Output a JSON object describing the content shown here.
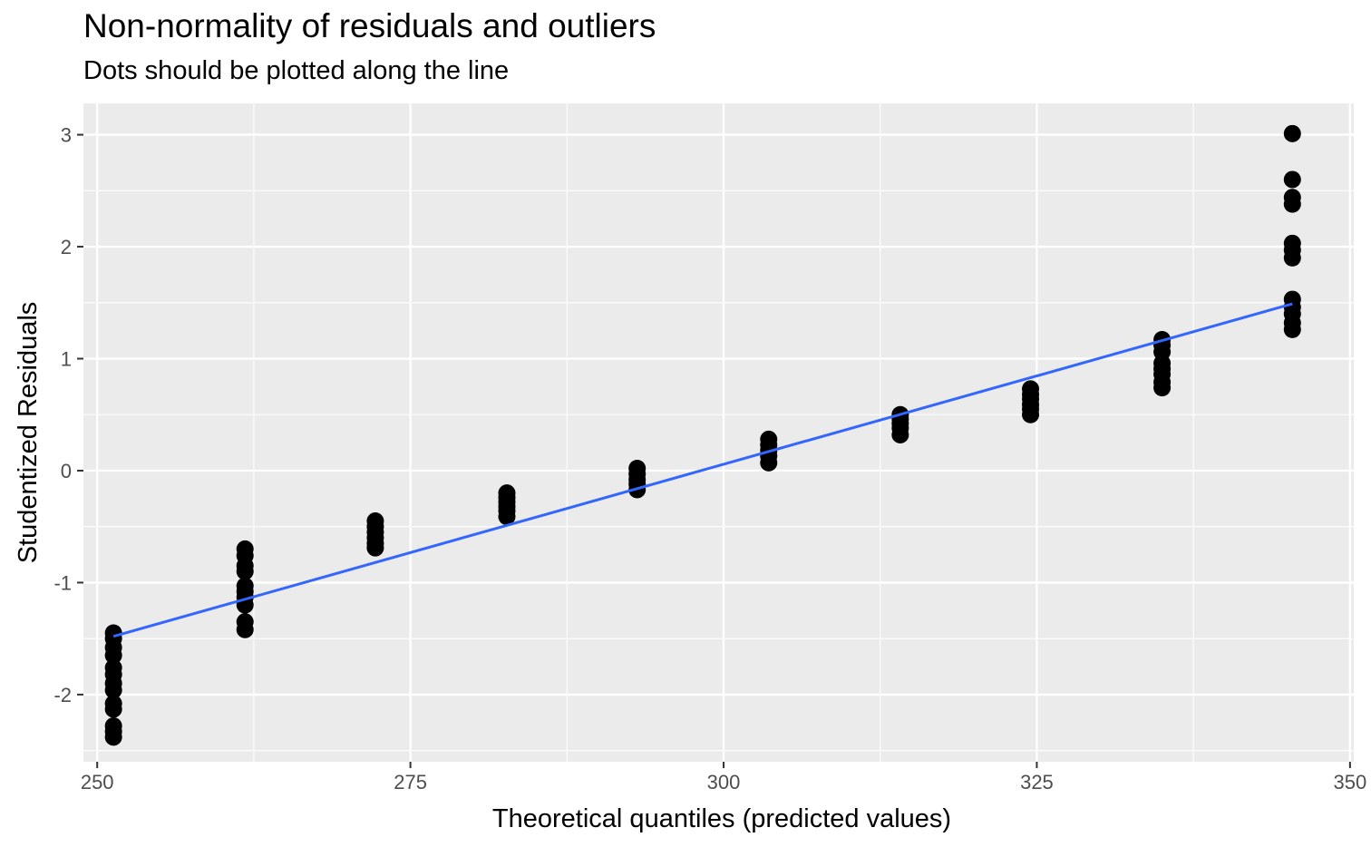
{
  "chart_data": {
    "type": "scatter",
    "title": "Non-normality of residuals and outliers",
    "subtitle": "Dots should be plotted along the line",
    "xlabel": "Theoretical quantiles (predicted values)",
    "ylabel": "Studentized Residuals",
    "xlim": [
      248.9,
      350.3
    ],
    "ylim": [
      -2.6,
      3.28
    ],
    "x_ticks": [
      250,
      275,
      300,
      325,
      350
    ],
    "x_tick_labels": [
      "250",
      "275",
      "300",
      "325",
      "350"
    ],
    "y_ticks": [
      -2,
      -1,
      0,
      1,
      2,
      3
    ],
    "y_tick_labels": [
      "-2",
      "-1",
      "0",
      "1",
      "2",
      "3"
    ],
    "grid": true,
    "colors": {
      "panel": "#ebebeb",
      "grid": "#ffffff",
      "points": "#000000",
      "line": "#3366ff"
    },
    "series": [
      {
        "kind": "points",
        "points": [
          {
            "x": 251.3,
            "y": -1.45
          },
          {
            "x": 251.3,
            "y": -1.5
          },
          {
            "x": 251.3,
            "y": -1.58
          },
          {
            "x": 251.3,
            "y": -1.65
          },
          {
            "x": 251.3,
            "y": -1.76
          },
          {
            "x": 251.3,
            "y": -1.82
          },
          {
            "x": 251.3,
            "y": -1.9
          },
          {
            "x": 251.3,
            "y": -1.96
          },
          {
            "x": 251.3,
            "y": -2.08
          },
          {
            "x": 251.3,
            "y": -2.13
          },
          {
            "x": 251.3,
            "y": -2.28
          },
          {
            "x": 251.3,
            "y": -2.33
          },
          {
            "x": 251.3,
            "y": -2.38
          },
          {
            "x": 261.8,
            "y": -0.7
          },
          {
            "x": 261.8,
            "y": -0.76
          },
          {
            "x": 261.8,
            "y": -0.85
          },
          {
            "x": 261.8,
            "y": -0.9
          },
          {
            "x": 261.8,
            "y": -1.03
          },
          {
            "x": 261.8,
            "y": -1.08
          },
          {
            "x": 261.8,
            "y": -1.13
          },
          {
            "x": 261.8,
            "y": -1.2
          },
          {
            "x": 261.8,
            "y": -1.35
          },
          {
            "x": 261.8,
            "y": -1.42
          },
          {
            "x": 272.2,
            "y": -0.45
          },
          {
            "x": 272.2,
            "y": -0.5
          },
          {
            "x": 272.2,
            "y": -0.55
          },
          {
            "x": 272.2,
            "y": -0.6
          },
          {
            "x": 272.2,
            "y": -0.65
          },
          {
            "x": 272.2,
            "y": -0.69
          },
          {
            "x": 282.7,
            "y": -0.2
          },
          {
            "x": 282.7,
            "y": -0.24
          },
          {
            "x": 282.7,
            "y": -0.28
          },
          {
            "x": 282.7,
            "y": -0.32
          },
          {
            "x": 282.7,
            "y": -0.36
          },
          {
            "x": 282.7,
            "y": -0.41
          },
          {
            "x": 293.1,
            "y": 0.02
          },
          {
            "x": 293.1,
            "y": -0.03
          },
          {
            "x": 293.1,
            "y": -0.08
          },
          {
            "x": 293.1,
            "y": -0.12
          },
          {
            "x": 293.1,
            "y": -0.17
          },
          {
            "x": 303.6,
            "y": 0.28
          },
          {
            "x": 303.6,
            "y": 0.23
          },
          {
            "x": 303.6,
            "y": 0.18
          },
          {
            "x": 303.6,
            "y": 0.13
          },
          {
            "x": 303.6,
            "y": 0.07
          },
          {
            "x": 314.1,
            "y": 0.5
          },
          {
            "x": 314.1,
            "y": 0.46
          },
          {
            "x": 314.1,
            "y": 0.42
          },
          {
            "x": 314.1,
            "y": 0.38
          },
          {
            "x": 314.1,
            "y": 0.32
          },
          {
            "x": 324.5,
            "y": 0.73
          },
          {
            "x": 324.5,
            "y": 0.68
          },
          {
            "x": 324.5,
            "y": 0.64
          },
          {
            "x": 324.5,
            "y": 0.59
          },
          {
            "x": 324.5,
            "y": 0.55
          },
          {
            "x": 324.5,
            "y": 0.5
          },
          {
            "x": 335.0,
            "y": 1.17
          },
          {
            "x": 335.0,
            "y": 1.12
          },
          {
            "x": 335.0,
            "y": 1.06
          },
          {
            "x": 335.0,
            "y": 0.96
          },
          {
            "x": 335.0,
            "y": 0.91
          },
          {
            "x": 335.0,
            "y": 0.86
          },
          {
            "x": 335.0,
            "y": 0.79
          },
          {
            "x": 335.0,
            "y": 0.74
          },
          {
            "x": 345.4,
            "y": 3.01
          },
          {
            "x": 345.4,
            "y": 2.6
          },
          {
            "x": 345.4,
            "y": 2.44
          },
          {
            "x": 345.4,
            "y": 2.38
          },
          {
            "x": 345.4,
            "y": 2.03
          },
          {
            "x": 345.4,
            "y": 1.97
          },
          {
            "x": 345.4,
            "y": 1.9
          },
          {
            "x": 345.4,
            "y": 1.53
          },
          {
            "x": 345.4,
            "y": 1.46
          },
          {
            "x": 345.4,
            "y": 1.4
          },
          {
            "x": 345.4,
            "y": 1.32
          },
          {
            "x": 345.4,
            "y": 1.26
          }
        ]
      },
      {
        "kind": "line",
        "points": [
          {
            "x": 251.3,
            "y": -1.48
          },
          {
            "x": 345.4,
            "y": 1.49
          }
        ]
      }
    ]
  }
}
